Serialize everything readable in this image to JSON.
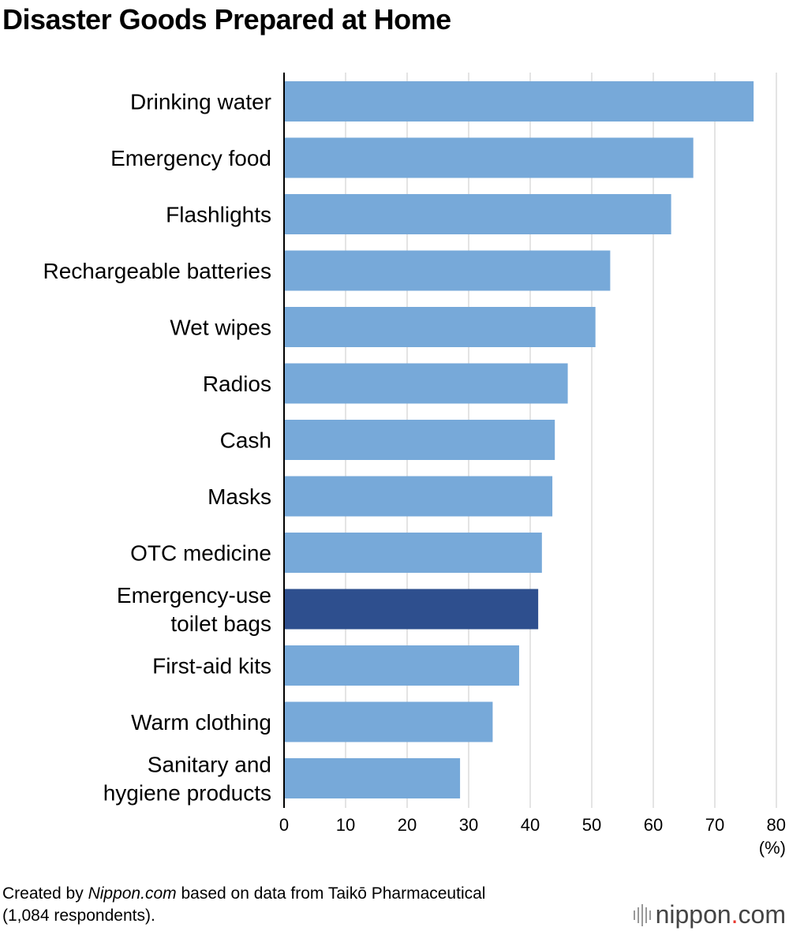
{
  "chart_data": {
    "type": "bar",
    "orientation": "horizontal",
    "title": "Disaster Goods Prepared at Home",
    "categories": [
      [
        "Drinking water"
      ],
      [
        "Emergency food"
      ],
      [
        "Flashlights"
      ],
      [
        "Rechargeable batteries"
      ],
      [
        "Wet wipes"
      ],
      [
        "Radios"
      ],
      [
        "Cash"
      ],
      [
        "Masks"
      ],
      [
        "OTC medicine"
      ],
      [
        "Emergency-use",
        "toilet bags"
      ],
      [
        "First-aid kits"
      ],
      [
        "Warm clothing"
      ],
      [
        "Sanitary and",
        "hygiene products"
      ]
    ],
    "values": [
      76.3,
      66.5,
      62.9,
      53.0,
      50.6,
      46.1,
      44.0,
      43.6,
      41.9,
      41.3,
      38.2,
      33.9,
      28.6
    ],
    "highlight_index": 9,
    "xlim": [
      0,
      80
    ],
    "xticks": [
      0,
      10,
      20,
      30,
      40,
      50,
      60,
      70,
      80
    ],
    "unit_label": "(%)",
    "grid": true,
    "colors": {
      "bar": "#77a9d9",
      "highlight": "#2e4f8e",
      "grid": "#c8c8c8",
      "axis": "#000000"
    }
  },
  "source": {
    "prefix": "Created by ",
    "site": "Nippon.com",
    "suffix": " based on data from Taikō Pharmaceutical",
    "line2": "(1,084 respondents)."
  },
  "logo": {
    "name": "nippon",
    "dot": ".",
    "tld": "com"
  }
}
